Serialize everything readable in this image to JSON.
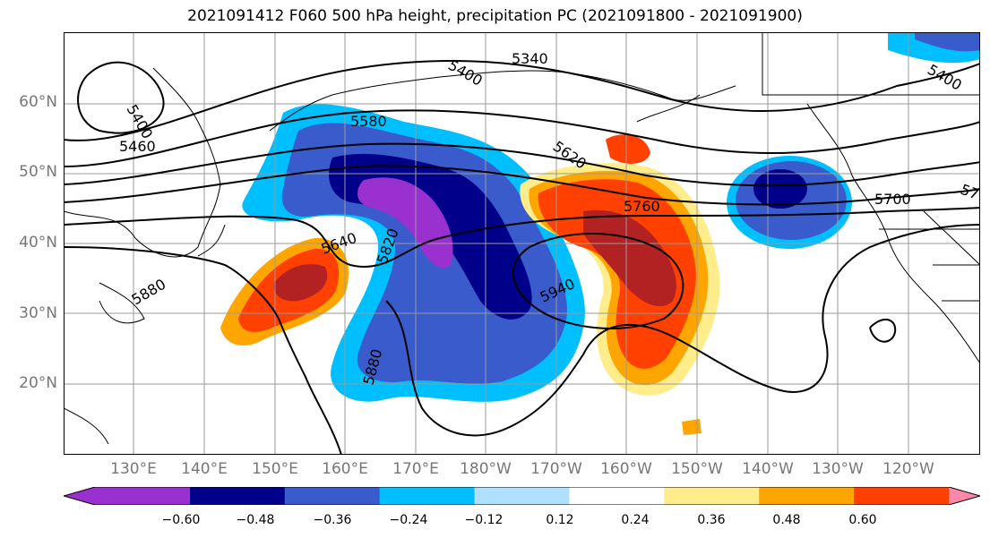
{
  "title": "2021091412 F060 500 hPa height, precipitation PC (2021091800 - 2021091900)",
  "lat_labels": [
    "60°N",
    "50°N",
    "40°N",
    "30°N",
    "20°N"
  ],
  "lon_labels": [
    "130°E",
    "140°E",
    "150°E",
    "160°E",
    "170°E",
    "180°W",
    "170°W",
    "160°W",
    "150°W",
    "140°W",
    "130°W",
    "120°W"
  ],
  "contour_labels": [
    "5400",
    "5460",
    "5580",
    "5400",
    "5340",
    "5620",
    "5760",
    "5700",
    "5640",
    "5820",
    "5880",
    "5940",
    "5880",
    "5400",
    "57"
  ],
  "colorbar": {
    "ticks": [
      "−0.60",
      "−0.48",
      "−0.36",
      "−0.24",
      "−0.12",
      "0.12",
      "0.24",
      "0.36",
      "0.48",
      "0.60"
    ],
    "colors": [
      "#9b30d0",
      "#00008b",
      "#3a5bcc",
      "#00bfff",
      "#b0e0ff",
      "#ffffff",
      "#ffec8b",
      "#ffa500",
      "#ff4000",
      "#b22222",
      "#ff88aa"
    ]
  }
}
